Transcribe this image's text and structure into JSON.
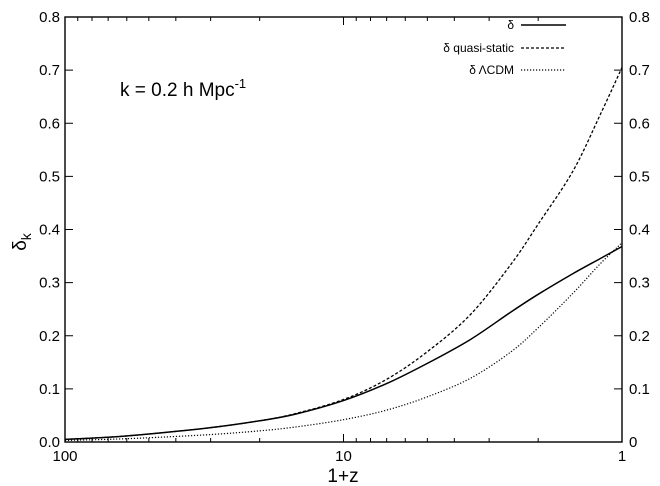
{
  "chart_data": {
    "type": "line",
    "xlabel": "1+z",
    "ylabel": "δ",
    "ylabel_sub": "k",
    "xscale": "log",
    "x_reversed": true,
    "xlim": [
      100,
      1
    ],
    "ylim": [
      0.0,
      0.8
    ],
    "x_ticks": [
      100,
      10,
      1
    ],
    "x_tick_labels": [
      "100",
      "10",
      "1"
    ],
    "y_ticks": [
      0.0,
      0.1,
      0.2,
      0.3,
      0.4,
      0.5,
      0.6,
      0.7,
      0.8
    ],
    "y_tick_labels_left": [
      "0.0",
      "0.1",
      "0.2",
      "0.3",
      "0.4",
      "0.5",
      "0.6",
      "0.7",
      "0.8"
    ],
    "y_tick_labels_right": [
      "0",
      "0.1",
      "0.2",
      "0.3",
      "0.4",
      "0.5",
      "0.6",
      "0.7",
      "0.8"
    ],
    "annotation": {
      "main": "k = 0.2 h Mpc",
      "superscript": "-1"
    },
    "legend_position": "top-right",
    "series": [
      {
        "name": "δ",
        "style": "solid",
        "points": [
          [
            100,
            0.005
          ],
          [
            70,
            0.009
          ],
          [
            50,
            0.015
          ],
          [
            30,
            0.027
          ],
          [
            20,
            0.04
          ],
          [
            15,
            0.052
          ],
          [
            10,
            0.078
          ],
          [
            7,
            0.11
          ],
          [
            5,
            0.148
          ],
          [
            3.5,
            0.193
          ],
          [
            2.5,
            0.245
          ],
          [
            2,
            0.278
          ],
          [
            1.5,
            0.317
          ],
          [
            1.2,
            0.345
          ],
          [
            1,
            0.368
          ]
        ]
      },
      {
        "name": "δ quasi-static",
        "style": "dashed",
        "points": [
          [
            100,
            0.005
          ],
          [
            70,
            0.009
          ],
          [
            50,
            0.015
          ],
          [
            30,
            0.027
          ],
          [
            20,
            0.04
          ],
          [
            15,
            0.053
          ],
          [
            10,
            0.08
          ],
          [
            7,
            0.118
          ],
          [
            5,
            0.17
          ],
          [
            3.5,
            0.24
          ],
          [
            2.5,
            0.335
          ],
          [
            2,
            0.41
          ],
          [
            1.5,
            0.51
          ],
          [
            1.2,
            0.615
          ],
          [
            1,
            0.705
          ]
        ]
      },
      {
        "name": "δ  ΛCDM",
        "style": "dotted",
        "points": [
          [
            100,
            0.003
          ],
          [
            70,
            0.005
          ],
          [
            50,
            0.008
          ],
          [
            30,
            0.014
          ],
          [
            20,
            0.021
          ],
          [
            15,
            0.028
          ],
          [
            10,
            0.042
          ],
          [
            7,
            0.06
          ],
          [
            5,
            0.085
          ],
          [
            3.5,
            0.12
          ],
          [
            2.5,
            0.17
          ],
          [
            2,
            0.215
          ],
          [
            1.5,
            0.28
          ],
          [
            1.2,
            0.335
          ],
          [
            1,
            0.375
          ]
        ]
      }
    ]
  }
}
